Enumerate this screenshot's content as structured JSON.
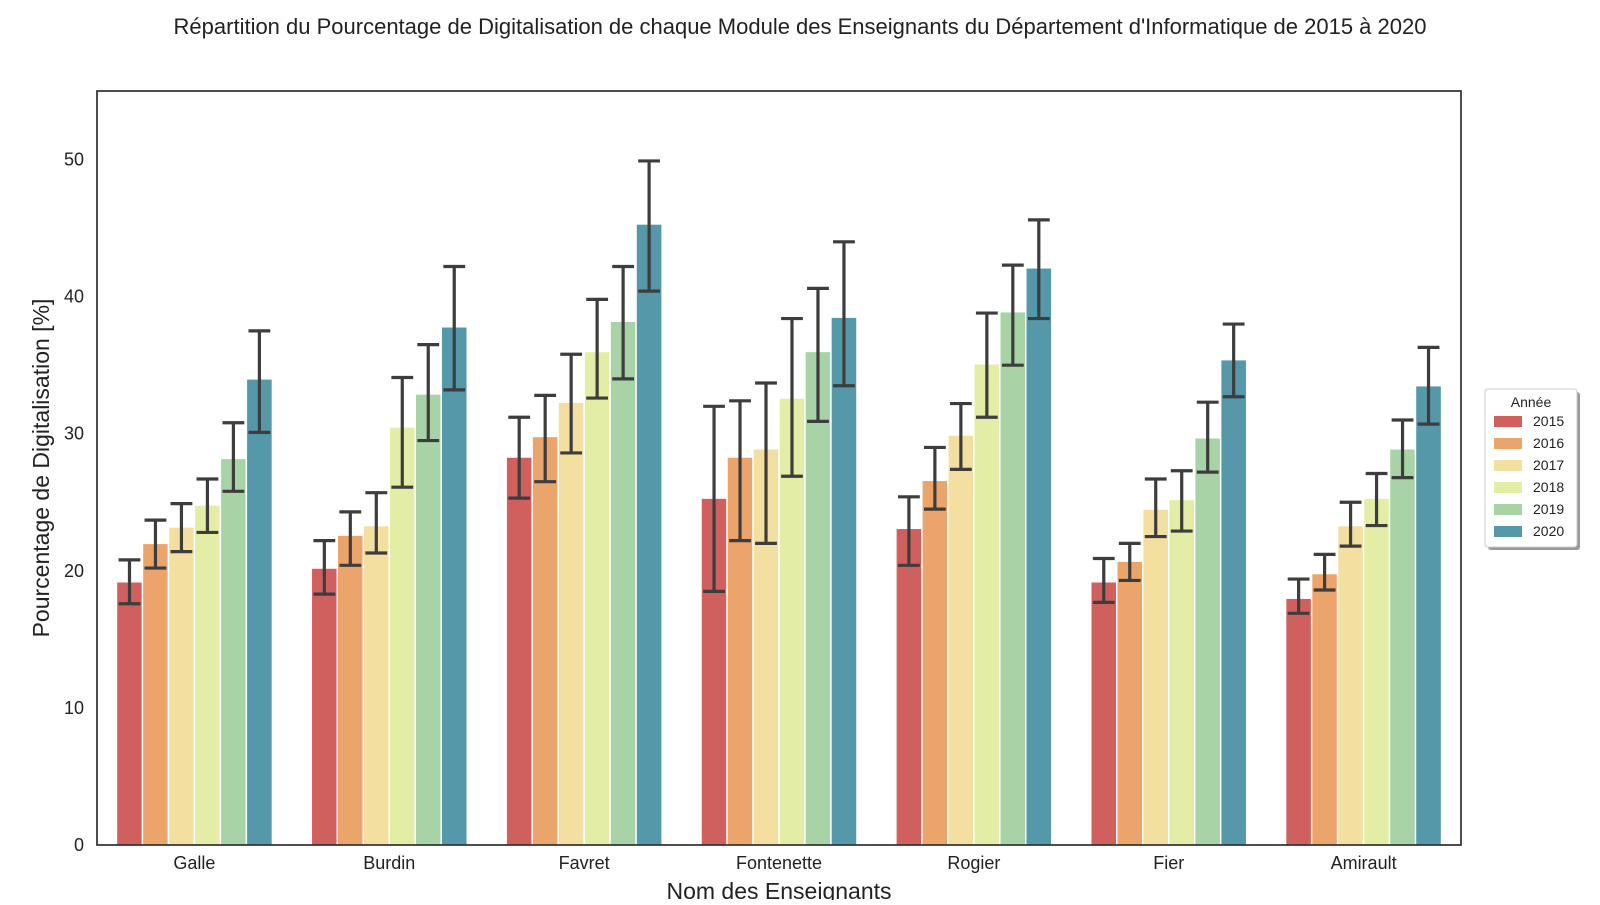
{
  "chart_data": {
    "type": "bar",
    "title": "Répartition du Pourcentage de Digitalisation de chaque Module des Enseignants du Département d'Informatique de 2015 à 2020",
    "xlabel": "Nom des Enseignants",
    "ylabel": "Pourcentage de Digitalisation [%]",
    "ylim": [
      0,
      55
    ],
    "yticks": [
      0,
      10,
      20,
      30,
      40,
      50
    ],
    "grid": false,
    "legend": {
      "title": "Année",
      "placement": "right"
    },
    "categories": [
      "Galle",
      "Burdin",
      "Favret",
      "Fontenette",
      "Rogier",
      "Fier",
      "Amirault"
    ],
    "series": [
      {
        "name": "2015",
        "color": "#d0605e",
        "values": [
          19.2,
          20.2,
          28.3,
          25.3,
          23.1,
          19.2,
          18.0
        ],
        "err_low": [
          17.6,
          18.3,
          25.3,
          18.5,
          20.4,
          17.7,
          16.9
        ],
        "err_high": [
          20.8,
          22.2,
          31.2,
          32.0,
          25.4,
          20.9,
          19.4
        ]
      },
      {
        "name": "2016",
        "color": "#eba56b",
        "values": [
          22.0,
          22.6,
          29.8,
          28.3,
          26.6,
          20.7,
          19.8
        ],
        "err_low": [
          20.2,
          20.4,
          26.5,
          22.2,
          24.5,
          19.3,
          18.6
        ],
        "err_high": [
          23.7,
          24.3,
          32.8,
          32.4,
          29.0,
          22.0,
          21.2
        ]
      },
      {
        "name": "2017",
        "color": "#f3dfa0",
        "values": [
          23.2,
          23.3,
          32.3,
          28.9,
          29.9,
          24.5,
          23.3
        ],
        "err_low": [
          21.4,
          21.3,
          28.6,
          22.0,
          27.4,
          22.5,
          21.8
        ],
        "err_high": [
          24.9,
          25.7,
          35.8,
          33.7,
          32.2,
          26.7,
          25.0
        ]
      },
      {
        "name": "2018",
        "color": "#e4eda6",
        "values": [
          24.8,
          30.5,
          36.0,
          32.6,
          35.1,
          25.2,
          25.3
        ],
        "err_low": [
          22.8,
          26.1,
          32.6,
          26.9,
          31.2,
          22.9,
          23.3
        ],
        "err_high": [
          26.7,
          34.1,
          39.8,
          38.4,
          38.8,
          27.3,
          27.1
        ]
      },
      {
        "name": "2019",
        "color": "#a8d3a6",
        "values": [
          28.2,
          32.9,
          38.2,
          36.0,
          38.9,
          29.7,
          28.9
        ],
        "err_low": [
          25.8,
          29.5,
          34.0,
          30.9,
          35.0,
          27.2,
          26.8
        ],
        "err_high": [
          30.8,
          36.5,
          42.2,
          40.6,
          42.3,
          32.3,
          31.0
        ]
      },
      {
        "name": "2020",
        "color": "#5598a9",
        "values": [
          34.0,
          37.8,
          45.3,
          38.5,
          42.1,
          35.4,
          33.5
        ],
        "err_low": [
          30.1,
          33.2,
          40.4,
          33.5,
          38.4,
          32.7,
          30.7
        ],
        "err_high": [
          37.5,
          42.2,
          49.9,
          44.0,
          45.6,
          38.0,
          36.3
        ]
      }
    ]
  }
}
